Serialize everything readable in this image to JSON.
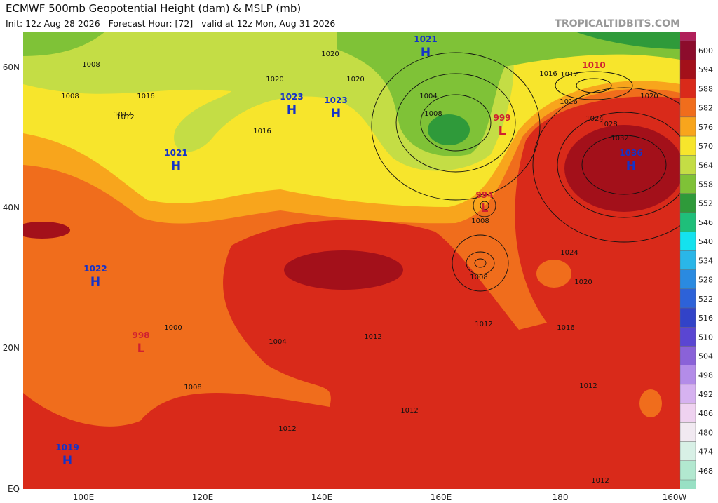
{
  "header": {
    "title": "ECMWF 500mb Geopotential Height (dam) & MSLP (mb)",
    "subtitle": "Init: 12z Aug 28 2026   Forecast Hour: [72]   valid at 12z Mon, Aug 31 2026",
    "site": "TROPICALTIDBITS.COM"
  },
  "latitude_labels": [
    "60N",
    "40N",
    "20N",
    "EQ"
  ],
  "longitude_labels": [
    "100E",
    "120E",
    "140E",
    "160E",
    "180",
    "160W"
  ],
  "colorbar": [
    {
      "value": 600,
      "color": "#8c0c2c"
    },
    {
      "value": 594,
      "color": "#a3101a"
    },
    {
      "value": 588,
      "color": "#d92a1a"
    },
    {
      "value": 582,
      "color": "#f06d1c"
    },
    {
      "value": 576,
      "color": "#f8a51c"
    },
    {
      "value": 570,
      "color": "#f7e52c"
    },
    {
      "value": 564,
      "color": "#c4dd45"
    },
    {
      "value": 558,
      "color": "#7fc237"
    },
    {
      "value": 552,
      "color": "#2f9a3a"
    },
    {
      "value": 546,
      "color": "#1fbf7a"
    },
    {
      "value": 540,
      "color": "#14e2ee"
    },
    {
      "value": 534,
      "color": "#2ab6e8"
    },
    {
      "value": 528,
      "color": "#2a8ae0"
    },
    {
      "value": 522,
      "color": "#2d62d8"
    },
    {
      "value": 516,
      "color": "#3243c8"
    },
    {
      "value": 510,
      "color": "#5a46d2"
    },
    {
      "value": 504,
      "color": "#8a62d8"
    },
    {
      "value": 498,
      "color": "#b38ce8"
    },
    {
      "value": 492,
      "color": "#d6b2f0"
    },
    {
      "value": 486,
      "color": "#efd2f0"
    },
    {
      "value": 480,
      "color": "#f1e9f1"
    },
    {
      "value": 474,
      "color": "#d8f0e6"
    },
    {
      "value": 468,
      "color": "#b2e8d0"
    }
  ],
  "pressure_centers": [
    {
      "value": "1021",
      "letter": "H"
    },
    {
      "value": "1023",
      "letter": "H"
    },
    {
      "value": "1023",
      "letter": "H"
    },
    {
      "value": "1021",
      "letter": "H"
    },
    {
      "value": "1022",
      "letter": "H"
    },
    {
      "value": "1019",
      "letter": "H"
    },
    {
      "value": "1036",
      "letter": "H"
    },
    {
      "value": "1010",
      "letter": "L"
    },
    {
      "value": "999",
      "letter": "L"
    },
    {
      "value": "994",
      "letter": "L"
    },
    {
      "value": "998",
      "letter": "L"
    }
  ],
  "isobar_labels": [
    "1008",
    "1008",
    "1020",
    "1020",
    "1020",
    "1016",
    "1016",
    "1012",
    "1012",
    "1004",
    "1008",
    "1016",
    "1012",
    "1016",
    "1020",
    "1024",
    "1028",
    "1032",
    "1024",
    "1020",
    "1016",
    "1012",
    "1008",
    "1008",
    "1012",
    "1004",
    "1008",
    "1000",
    "1012",
    "1012",
    "1012",
    "1012"
  ]
}
